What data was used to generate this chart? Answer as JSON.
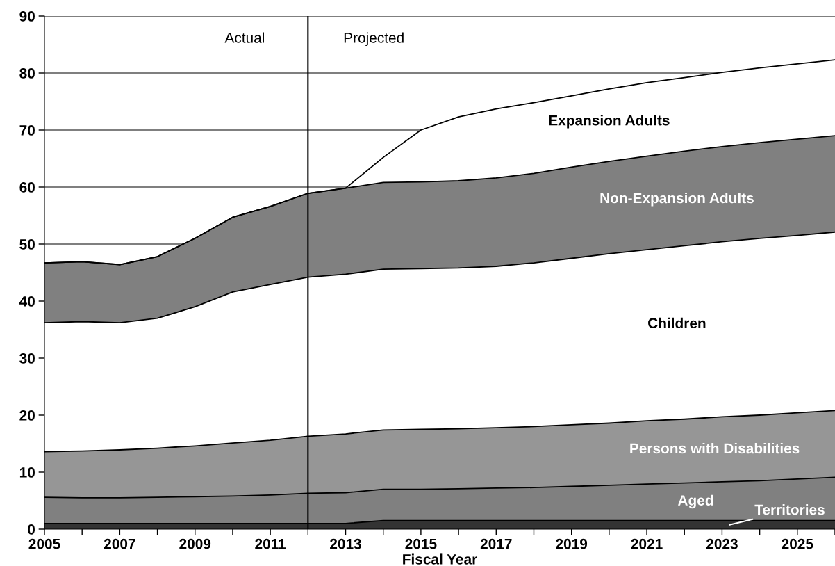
{
  "chart_data": {
    "type": "area",
    "stacked": true,
    "xlabel": "Fiscal Year",
    "x": [
      2005,
      2006,
      2007,
      2008,
      2009,
      2010,
      2011,
      2012,
      2013,
      2014,
      2015,
      2016,
      2017,
      2018,
      2019,
      2020,
      2021,
      2022,
      2023,
      2024,
      2025,
      2026
    ],
    "series": [
      {
        "name": "Territories",
        "color": "#333333",
        "values": [
          1.0,
          1.0,
          1.0,
          1.0,
          1.0,
          1.0,
          1.0,
          1.0,
          1.0,
          1.5,
          1.5,
          1.5,
          1.5,
          1.5,
          1.5,
          1.5,
          1.5,
          1.5,
          1.5,
          1.5,
          1.5,
          1.5
        ]
      },
      {
        "name": "Aged",
        "color": "#808080",
        "values": [
          4.6,
          4.5,
          4.5,
          4.6,
          4.7,
          4.8,
          5.0,
          5.3,
          5.4,
          5.5,
          5.5,
          5.6,
          5.7,
          5.8,
          6.0,
          6.2,
          6.4,
          6.6,
          6.8,
          7.0,
          7.3,
          7.6
        ]
      },
      {
        "name": "Persons with Disabilities",
        "color": "#969696",
        "values": [
          8.0,
          8.2,
          8.4,
          8.6,
          8.9,
          9.3,
          9.6,
          10.0,
          10.3,
          10.4,
          10.5,
          10.5,
          10.6,
          10.7,
          10.8,
          10.9,
          11.1,
          11.2,
          11.4,
          11.5,
          11.6,
          11.7
        ]
      },
      {
        "name": "Children",
        "color": "#ffffff",
        "values": [
          22.6,
          22.7,
          22.3,
          22.8,
          24.4,
          26.5,
          27.3,
          27.9,
          28.0,
          28.2,
          28.2,
          28.2,
          28.3,
          28.7,
          29.2,
          29.7,
          30.0,
          30.4,
          30.7,
          31.0,
          31.1,
          31.3
        ]
      },
      {
        "name": "Non-Expansion Adults",
        "color": "#808080",
        "values": [
          10.5,
          10.5,
          10.2,
          10.8,
          12.0,
          13.1,
          13.7,
          14.7,
          15.1,
          15.2,
          15.2,
          15.3,
          15.5,
          15.7,
          16.0,
          16.2,
          16.4,
          16.6,
          16.7,
          16.8,
          16.9,
          16.9
        ]
      },
      {
        "name": "Expansion Adults",
        "color": "#ffffff",
        "values": [
          0,
          0,
          0,
          0,
          0,
          0,
          0,
          0,
          0,
          4.4,
          9.1,
          11.2,
          12.1,
          12.4,
          12.5,
          12.7,
          12.9,
          12.9,
          13.0,
          13.1,
          13.2,
          13.3
        ]
      }
    ],
    "xlim": [
      2005,
      2026
    ],
    "xticks": [
      2005,
      {
        "value": 2006,
        "label": null
      },
      2007,
      {
        "value": 2008,
        "label": null
      },
      2009,
      {
        "value": 2010,
        "label": null
      },
      2011,
      {
        "value": 2012,
        "label": null
      },
      2013,
      {
        "value": 2014,
        "label": null
      },
      2015,
      {
        "value": 2016,
        "label": null
      },
      2017,
      {
        "value": 2018,
        "label": null
      },
      2019,
      {
        "value": 2020,
        "label": null
      },
      2021,
      {
        "value": 2022,
        "label": null
      },
      2023,
      {
        "value": 2024,
        "label": null
      },
      2025,
      {
        "value": 2026,
        "label": null
      }
    ],
    "ylim": [
      0,
      90
    ],
    "yticks": [
      0,
      10,
      20,
      30,
      40,
      50,
      60,
      70,
      80,
      90
    ],
    "grid": "y",
    "legend": false,
    "ref_lines": [
      {
        "axis": "x",
        "value": 2012,
        "color": "#000000"
      }
    ],
    "annotations": [
      "Actual",
      "Projected"
    ]
  }
}
